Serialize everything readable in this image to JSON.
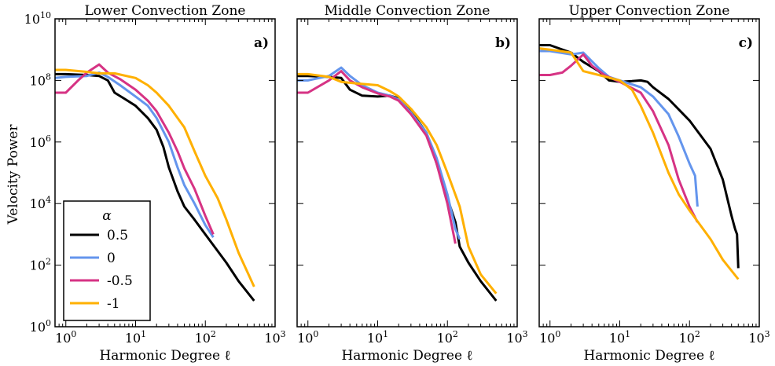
{
  "chart_data": {
    "type": "line",
    "ylabel": "Velocity Power",
    "xscale": "log",
    "yscale": "log",
    "xlim": [
      0.7,
      1000
    ],
    "ylim": [
      1,
      10000000000
    ],
    "y_ticks": [
      {
        "value": 1,
        "base": "10",
        "exp": "0"
      },
      {
        "value": 100,
        "base": "10",
        "exp": "2"
      },
      {
        "value": 10000,
        "base": "10",
        "exp": "4"
      },
      {
        "value": 1000000,
        "base": "10",
        "exp": "6"
      },
      {
        "value": 100000000,
        "base": "10",
        "exp": "8"
      },
      {
        "value": 10000000000,
        "base": "10",
        "exp": "10"
      }
    ],
    "x_ticks": [
      {
        "value": 1,
        "base": "10",
        "exp": "0"
      },
      {
        "value": 10,
        "base": "10",
        "exp": "1"
      },
      {
        "value": 100,
        "base": "10",
        "exp": "2"
      },
      {
        "value": 1000,
        "base": "10",
        "exp": "3"
      }
    ],
    "legend": {
      "title": "α",
      "position": "lower-left",
      "entries": [
        {
          "label": "0.5",
          "color": "#000000"
        },
        {
          "label": "0",
          "color": "#6495ed"
        },
        {
          "label": "-0.5",
          "color": "#d63384"
        },
        {
          "label": "-1",
          "color": "#ffb000"
        }
      ]
    },
    "panels": [
      {
        "title": "Lower Convection Zone",
        "panel_label": "a)",
        "xlabel": "Harmonic Degree ℓ",
        "series": [
          {
            "name": "0.5",
            "color": "#000000",
            "points": [
              [
                0.7,
                160000000.0
              ],
              [
                1,
                160000000.0
              ],
              [
                2,
                150000000.0
              ],
              [
                3,
                140000000.0
              ],
              [
                4,
                100000000.0
              ],
              [
                5,
                40000000.0
              ],
              [
                7,
                25000000.0
              ],
              [
                10,
                15000000.0
              ],
              [
                15,
                6000000.0
              ],
              [
                20,
                2500000.0
              ],
              [
                25,
                700000.0
              ],
              [
                30,
                150000.0
              ],
              [
                40,
                25000.0
              ],
              [
                50,
                8000.0
              ],
              [
                70,
                3000.0
              ],
              [
                100,
                1000.0
              ],
              [
                200,
                120.0
              ],
              [
                300,
                30.0
              ],
              [
                500,
                7
              ]
            ]
          },
          {
            "name": "0",
            "color": "#6495ed",
            "points": [
              [
                0.7,
                120000000.0
              ],
              [
                1,
                130000000.0
              ],
              [
                2,
                140000000.0
              ],
              [
                3,
                180000000.0
              ],
              [
                4,
                130000000.0
              ],
              [
                6,
                70000000.0
              ],
              [
                10,
                30000000.0
              ],
              [
                15,
                15000000.0
              ],
              [
                20,
                6000000.0
              ],
              [
                30,
                1000000.0
              ],
              [
                40,
                150000.0
              ],
              [
                50,
                40000.0
              ],
              [
                70,
                10000.0
              ],
              [
                100,
                2000.0
              ],
              [
                130,
                800.0
              ]
            ]
          },
          {
            "name": "-0.5",
            "color": "#d63384",
            "points": [
              [
                0.7,
                40000000.0
              ],
              [
                1,
                40000000.0
              ],
              [
                1.5,
                100000000.0
              ],
              [
                2,
                180000000.0
              ],
              [
                3,
                330000000.0
              ],
              [
                4,
                180000000.0
              ],
              [
                6,
                110000000.0
              ],
              [
                10,
                50000000.0
              ],
              [
                15,
                22000000.0
              ],
              [
                20,
                10000000.0
              ],
              [
                30,
                2000000.0
              ],
              [
                40,
                500000.0
              ],
              [
                50,
                140000.0
              ],
              [
                70,
                30000.0
              ],
              [
                100,
                4000.0
              ],
              [
                130,
                1000.0
              ]
            ]
          },
          {
            "name": "-1",
            "color": "#ffb000",
            "points": [
              [
                0.7,
                220000000.0
              ],
              [
                1,
                220000000.0
              ],
              [
                2,
                190000000.0
              ],
              [
                3,
                170000000.0
              ],
              [
                5,
                170000000.0
              ],
              [
                10,
                120000000.0
              ],
              [
                15,
                70000000.0
              ],
              [
                20,
                40000000.0
              ],
              [
                30,
                15000000.0
              ],
              [
                50,
                3000000.0
              ],
              [
                70,
                500000.0
              ],
              [
                100,
                80000.0
              ],
              [
                150,
                15000.0
              ],
              [
                200,
                3000.0
              ],
              [
                300,
                250.0
              ],
              [
                500,
                20.0
              ]
            ]
          }
        ]
      },
      {
        "title": "Middle Convection Zone",
        "panel_label": "b)",
        "xlabel": "Harmonic Degree ℓ",
        "series": [
          {
            "name": "0.5",
            "color": "#000000",
            "points": [
              [
                0.7,
                140000000.0
              ],
              [
                1,
                140000000.0
              ],
              [
                2,
                130000000.0
              ],
              [
                3,
                120000000.0
              ],
              [
                4,
                50000000.0
              ],
              [
                6,
                32000000.0
              ],
              [
                10,
                30000000.0
              ],
              [
                15,
                32000000.0
              ],
              [
                20,
                26000000.0
              ],
              [
                30,
                10000000.0
              ],
              [
                50,
                2000000.0
              ],
              [
                70,
                200000.0
              ],
              [
                100,
                15000.0
              ],
              [
                130,
                2500.0
              ],
              [
                150,
                400.0
              ],
              [
                200,
                120.0
              ],
              [
                300,
                30.0
              ],
              [
                500,
                7
              ]
            ]
          },
          {
            "name": "0",
            "color": "#6495ed",
            "points": [
              [
                0.7,
                100000000.0
              ],
              [
                1,
                100000000.0
              ],
              [
                2,
                140000000.0
              ],
              [
                3,
                260000000.0
              ],
              [
                4,
                140000000.0
              ],
              [
                6,
                70000000.0
              ],
              [
                10,
                40000000.0
              ],
              [
                15,
                32000000.0
              ],
              [
                20,
                24000000.0
              ],
              [
                30,
                9000000.0
              ],
              [
                50,
                2000000.0
              ],
              [
                70,
                300000.0
              ],
              [
                100,
                20000.0
              ],
              [
                130,
                1500.0
              ],
              [
                150,
                700.0
              ]
            ]
          },
          {
            "name": "-0.5",
            "color": "#d63384",
            "points": [
              [
                0.7,
                40000000.0
              ],
              [
                1,
                40000000.0
              ],
              [
                2,
                100000000.0
              ],
              [
                3,
                200000000.0
              ],
              [
                4,
                100000000.0
              ],
              [
                6,
                60000000.0
              ],
              [
                10,
                38000000.0
              ],
              [
                15,
                30000000.0
              ],
              [
                20,
                22000000.0
              ],
              [
                30,
                8000000.0
              ],
              [
                50,
                1600000.0
              ],
              [
                70,
                200000.0
              ],
              [
                100,
                10000.0
              ],
              [
                130,
                500.0
              ]
            ]
          },
          {
            "name": "-1",
            "color": "#ffb000",
            "points": [
              [
                0.7,
                160000000.0
              ],
              [
                1,
                160000000.0
              ],
              [
                2,
                130000000.0
              ],
              [
                3,
                90000000.0
              ],
              [
                5,
                80000000.0
              ],
              [
                10,
                70000000.0
              ],
              [
                15,
                45000000.0
              ],
              [
                20,
                30000000.0
              ],
              [
                30,
                12000000.0
              ],
              [
                50,
                3000000.0
              ],
              [
                70,
                800000.0
              ],
              [
                100,
                100000.0
              ],
              [
                150,
                8000.0
              ],
              [
                200,
                400.0
              ],
              [
                300,
                50.0
              ],
              [
                500,
                12.0
              ]
            ]
          }
        ]
      },
      {
        "title": "Upper Convection Zone",
        "panel_label": "c)",
        "xlabel": "Harmonic Degree ℓ",
        "series": [
          {
            "name": "0.5",
            "color": "#000000",
            "points": [
              [
                0.7,
                1400000000.0
              ],
              [
                1,
                1400000000.0
              ],
              [
                2,
                800000000.0
              ],
              [
                3,
                400000000.0
              ],
              [
                5,
                200000000.0
              ],
              [
                7,
                100000000.0
              ],
              [
                10,
                90000000.0
              ],
              [
                15,
                95000000.0
              ],
              [
                20,
                100000000.0
              ],
              [
                25,
                90000000.0
              ],
              [
                30,
                60000000.0
              ],
              [
                50,
                25000000.0
              ],
              [
                100,
                5000000.0
              ],
              [
                200,
                600000.0
              ],
              [
                300,
                60000.0
              ],
              [
                400,
                4000.0
              ],
              [
                450,
                1500.0
              ],
              [
                480,
                1000.0
              ],
              [
                500,
                80.0
              ]
            ]
          },
          {
            "name": "0",
            "color": "#6495ed",
            "points": [
              [
                0.7,
                900000000.0
              ],
              [
                1,
                900000000.0
              ],
              [
                2,
                700000000.0
              ],
              [
                3,
                800000000.0
              ],
              [
                5,
                250000000.0
              ],
              [
                7,
                130000000.0
              ],
              [
                10,
                100000000.0
              ],
              [
                20,
                60000000.0
              ],
              [
                30,
                30000000.0
              ],
              [
                50,
                8000000.0
              ],
              [
                70,
                1500000.0
              ],
              [
                100,
                200000.0
              ],
              [
                120,
                80000.0
              ],
              [
                130,
                8000.0
              ]
            ]
          },
          {
            "name": "-0.5",
            "color": "#d63384",
            "points": [
              [
                0.7,
                150000000.0
              ],
              [
                1,
                150000000.0
              ],
              [
                1.5,
                180000000.0
              ],
              [
                2,
                300000000.0
              ],
              [
                3,
                700000000.0
              ],
              [
                4,
                300000000.0
              ],
              [
                6,
                150000000.0
              ],
              [
                10,
                90000000.0
              ],
              [
                20,
                40000000.0
              ],
              [
                30,
                10000000.0
              ],
              [
                50,
                800000.0
              ],
              [
                70,
                60000.0
              ],
              [
                100,
                8000.0
              ],
              [
                130,
                2500.0
              ]
            ]
          },
          {
            "name": "-1",
            "color": "#ffb000",
            "points": [
              [
                0.7,
                1100000000.0
              ],
              [
                1,
                1000000000.0
              ],
              [
                2,
                800000000.0
              ],
              [
                3,
                200000000.0
              ],
              [
                5,
                150000000.0
              ],
              [
                10,
                100000000.0
              ],
              [
                15,
                50000000.0
              ],
              [
                20,
                15000000.0
              ],
              [
                30,
                2000000.0
              ],
              [
                50,
                100000.0
              ],
              [
                70,
                20000.0
              ],
              [
                100,
                6000.0
              ],
              [
                200,
                700.0
              ],
              [
                300,
                150.0
              ],
              [
                500,
                35.0
              ]
            ]
          }
        ]
      }
    ]
  }
}
